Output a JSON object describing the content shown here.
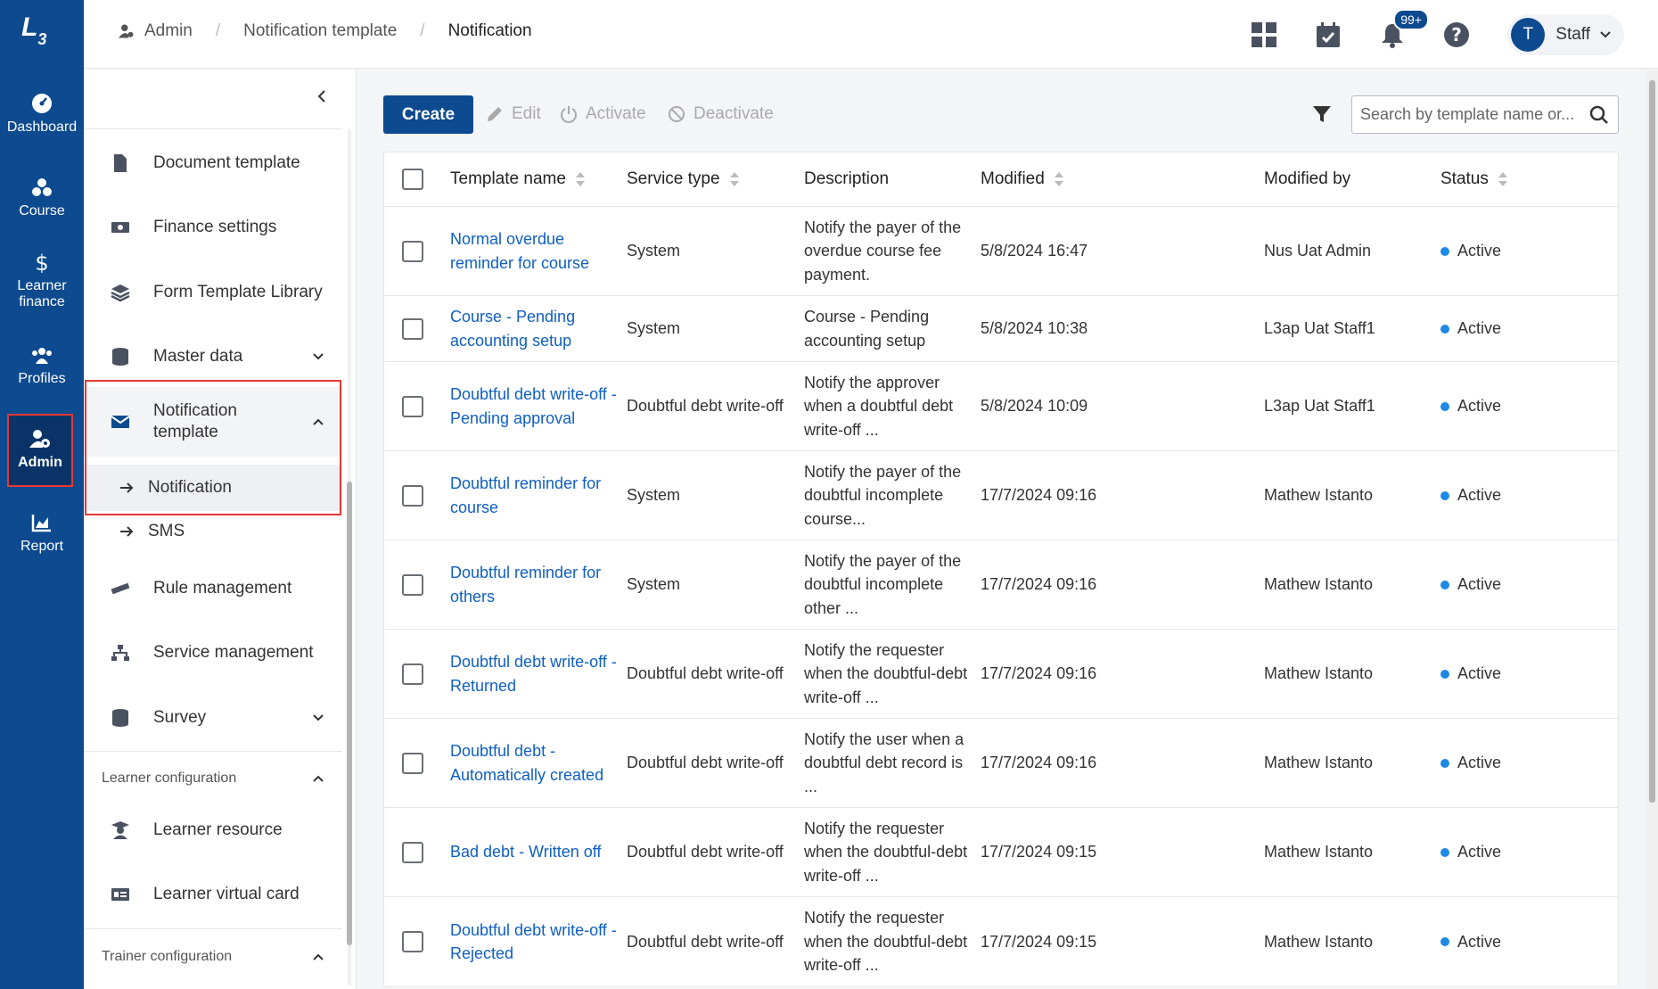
{
  "rail": {
    "items": [
      {
        "label": "Dashboard",
        "icon": "dashboard-icon"
      },
      {
        "label": "Course",
        "icon": "course-icon"
      },
      {
        "label": "Learner finance",
        "icon": "dollar-icon"
      },
      {
        "label": "Profiles",
        "icon": "profiles-icon"
      },
      {
        "label": "Admin",
        "icon": "admin-gear-icon",
        "active": true
      },
      {
        "label": "Report",
        "icon": "report-chart-icon"
      }
    ]
  },
  "breadcrumb": {
    "items": [
      "Admin",
      "Notification template",
      "Notification"
    ]
  },
  "top": {
    "notification_count": "99+",
    "user_initial": "T",
    "user_name": "Staff"
  },
  "sidebar": {
    "items": [
      {
        "label": "Document template"
      },
      {
        "label": "Finance settings"
      },
      {
        "label": "Form Template Library"
      },
      {
        "label": "Master data"
      },
      {
        "label": "Notification template"
      },
      {
        "label": "Rule management"
      },
      {
        "label": "Service management"
      },
      {
        "label": "Survey"
      },
      {
        "label": "Learner resource"
      },
      {
        "label": "Learner virtual card"
      }
    ],
    "sub_items": [
      {
        "label": "Notification",
        "active": true
      },
      {
        "label": "SMS"
      }
    ],
    "sections": [
      "Learner configuration",
      "Trainer configuration"
    ]
  },
  "toolbar": {
    "create_label": "Create",
    "edit_label": "Edit",
    "activate_label": "Activate",
    "deactivate_label": "Deactivate",
    "search_placeholder": "Search by template name or..."
  },
  "table": {
    "headers": [
      "Template name",
      "Service type",
      "Description",
      "Modified",
      "Modified by",
      "Status"
    ],
    "rows": [
      {
        "name": "Normal overdue reminder for course",
        "service": "System",
        "description": "Notify the payer of the overdue course fee payment.",
        "modified": "5/8/2024 16:47",
        "modified_by": "Nus Uat Admin",
        "status": "Active"
      },
      {
        "name": "Course - Pending accounting setup",
        "service": "System",
        "description": "Course - Pending accounting setup",
        "modified": "5/8/2024 10:38",
        "modified_by": "L3ap Uat Staff1",
        "status": "Active"
      },
      {
        "name": "Doubtful debt write-off - Pending approval",
        "service": "Doubtful debt write-off",
        "description": "Notify the approver when a doubtful debt write-off ...",
        "modified": "5/8/2024 10:09",
        "modified_by": "L3ap Uat Staff1",
        "status": "Active"
      },
      {
        "name": "Doubtful reminder for course",
        "service": "System",
        "description": "Notify the payer of the doubtful incomplete course...",
        "modified": "17/7/2024 09:16",
        "modified_by": "Mathew Istanto",
        "status": "Active"
      },
      {
        "name": "Doubtful reminder for others",
        "service": "System",
        "description": "Notify the payer of the doubtful incomplete other ...",
        "modified": "17/7/2024 09:16",
        "modified_by": "Mathew Istanto",
        "status": "Active"
      },
      {
        "name": "Doubtful debt write-off - Returned",
        "service": "Doubtful debt write-off",
        "description": "Notify the requester when the doubtful-debt write-off ...",
        "modified": "17/7/2024 09:16",
        "modified_by": "Mathew Istanto",
        "status": "Active"
      },
      {
        "name": "Doubtful debt - Automatically created",
        "service": "Doubtful debt write-off",
        "description": "Notify the user when a doubtful debt record is ...",
        "modified": "17/7/2024 09:16",
        "modified_by": "Mathew Istanto",
        "status": "Active"
      },
      {
        "name": "Bad debt - Written off",
        "service": "Doubtful debt write-off",
        "description": "Notify the requester when the doubtful-debt write-off ...",
        "modified": "17/7/2024 09:15",
        "modified_by": "Mathew Istanto",
        "status": "Active"
      },
      {
        "name": "Doubtful debt write-off - Rejected",
        "service": "Doubtful debt write-off",
        "description": "Notify the requester when the doubtful-debt write-off ...",
        "modified": "17/7/2024 09:15",
        "modified_by": "Mathew Istanto",
        "status": "Active"
      }
    ]
  },
  "colors": {
    "brand": "#0d4a8f",
    "link": "#0f5fc2",
    "active_dot": "#1e88e5",
    "highlight": "#e53935"
  }
}
